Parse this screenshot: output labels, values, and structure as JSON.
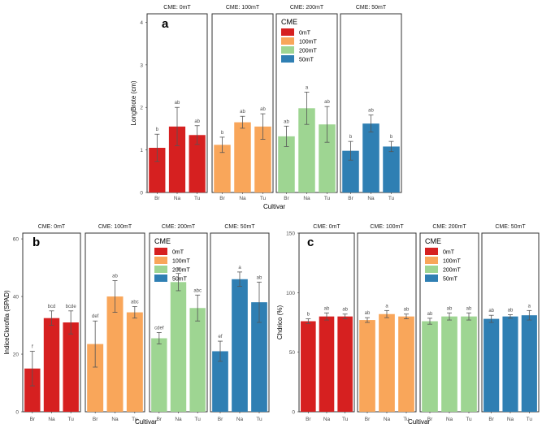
{
  "chart_data": [
    {
      "type": "bar",
      "panel": "a",
      "facets": [
        "CME: 0mT",
        "CME: 100mT",
        "CME: 200mT",
        "CME: 50mT"
      ],
      "categories": [
        "Br",
        "Na",
        "Tu"
      ],
      "xlabel": "Cultivar",
      "ylabel": "LongBrote (cm)",
      "ylim": [
        0,
        4.2
      ],
      "yticks": [
        0,
        1,
        2,
        3,
        4
      ],
      "series": [
        {
          "name": "0mT",
          "values": [
            1.05,
            1.55,
            1.35
          ],
          "errors": [
            0.32,
            0.45,
            0.22
          ],
          "letters": [
            "b",
            "ab",
            "ab"
          ]
        },
        {
          "name": "100mT",
          "values": [
            1.12,
            1.65,
            1.55
          ],
          "errors": [
            0.18,
            0.14,
            0.3
          ],
          "letters": [
            "b",
            "ab",
            "ab"
          ]
        },
        {
          "name": "200mT",
          "values": [
            1.32,
            1.98,
            1.6
          ],
          "errors": [
            0.24,
            0.38,
            0.42
          ],
          "letters": [
            "ab",
            "a",
            "ab"
          ]
        },
        {
          "name": "50mT",
          "values": [
            0.98,
            1.62,
            1.08
          ],
          "errors": [
            0.22,
            0.2,
            0.12
          ],
          "letters": [
            "b",
            "ab",
            "b"
          ]
        }
      ],
      "legend": {
        "title": "CME",
        "entries": [
          "0mT",
          "100mT",
          "200mT",
          "50mT"
        ],
        "placement": "inside-facet-3"
      },
      "grid": false
    },
    {
      "type": "bar",
      "panel": "b",
      "facets": [
        "CME: 0mT",
        "CME: 100mT",
        "CME: 200mT",
        "CME: 50mT"
      ],
      "categories": [
        "Br",
        "Na",
        "Tu"
      ],
      "xlabel": "Cultivar",
      "ylabel": "IndiceClorofila (SPAD)",
      "ylim": [
        0,
        62
      ],
      "yticks": [
        0,
        20,
        40,
        60
      ],
      "series": [
        {
          "name": "0mT",
          "values": [
            15,
            32.5,
            31
          ],
          "errors": [
            6,
            2.5,
            4
          ],
          "letters": [
            "f",
            "bcd",
            "bcde"
          ]
        },
        {
          "name": "100mT",
          "values": [
            23.5,
            40,
            34.5
          ],
          "errors": [
            8,
            5.5,
            2
          ],
          "letters": [
            "def",
            "ab",
            "abc"
          ]
        },
        {
          "name": "200mT",
          "values": [
            25.5,
            45,
            36
          ],
          "errors": [
            2,
            3,
            4.5
          ],
          "letters": [
            "cdef",
            "a",
            "abc"
          ]
        },
        {
          "name": "50mT",
          "values": [
            21,
            46,
            38
          ],
          "errors": [
            3.5,
            2.5,
            7
          ],
          "letters": [
            "ef",
            "a",
            "ab"
          ]
        }
      ],
      "legend": {
        "title": "CME",
        "entries": [
          "0mT",
          "100mT",
          "200mT",
          "50mT"
        ],
        "placement": "inside-facet-3"
      },
      "grid": false
    },
    {
      "type": "bar",
      "panel": "c",
      "facets": [
        "CME: 0mT",
        "CME: 100mT",
        "CME: 200mT",
        "CME: 50mT"
      ],
      "categories": [
        "Br",
        "Na",
        "Tu"
      ],
      "xlabel": "Cultivar",
      "ylabel": "Chdrico (%)",
      "ylim": [
        0,
        150
      ],
      "yticks": [
        0,
        50,
        100,
        150
      ],
      "series": [
        {
          "name": "0mT",
          "values": [
            76,
            80,
            80
          ],
          "errors": [
            2,
            3,
            2
          ],
          "letters": [
            "b",
            "ab",
            "ab"
          ]
        },
        {
          "name": "100mT",
          "values": [
            77,
            82,
            80
          ],
          "errors": [
            2,
            3,
            2
          ],
          "letters": [
            "ab",
            "a",
            "ab"
          ]
        },
        {
          "name": "200mT",
          "values": [
            76,
            80,
            80
          ],
          "errors": [
            2.5,
            3,
            3
          ],
          "letters": [
            "ab",
            "ab",
            "ab"
          ]
        },
        {
          "name": "50mT",
          "values": [
            78,
            80,
            81
          ],
          "errors": [
            3,
            1.5,
            4
          ],
          "letters": [
            "ab",
            "ab",
            "a"
          ]
        }
      ],
      "legend": {
        "title": "CME",
        "entries": [
          "0mT",
          "100mT",
          "200mT",
          "50mT"
        ],
        "placement": "inside-facet-3"
      },
      "grid": false
    }
  ],
  "colors": {
    "0mT": "#d62020",
    "100mT": "#f9a65a",
    "200mT": "#9ed592",
    "50mT": "#2f7fb3"
  },
  "error_color": "#555555"
}
